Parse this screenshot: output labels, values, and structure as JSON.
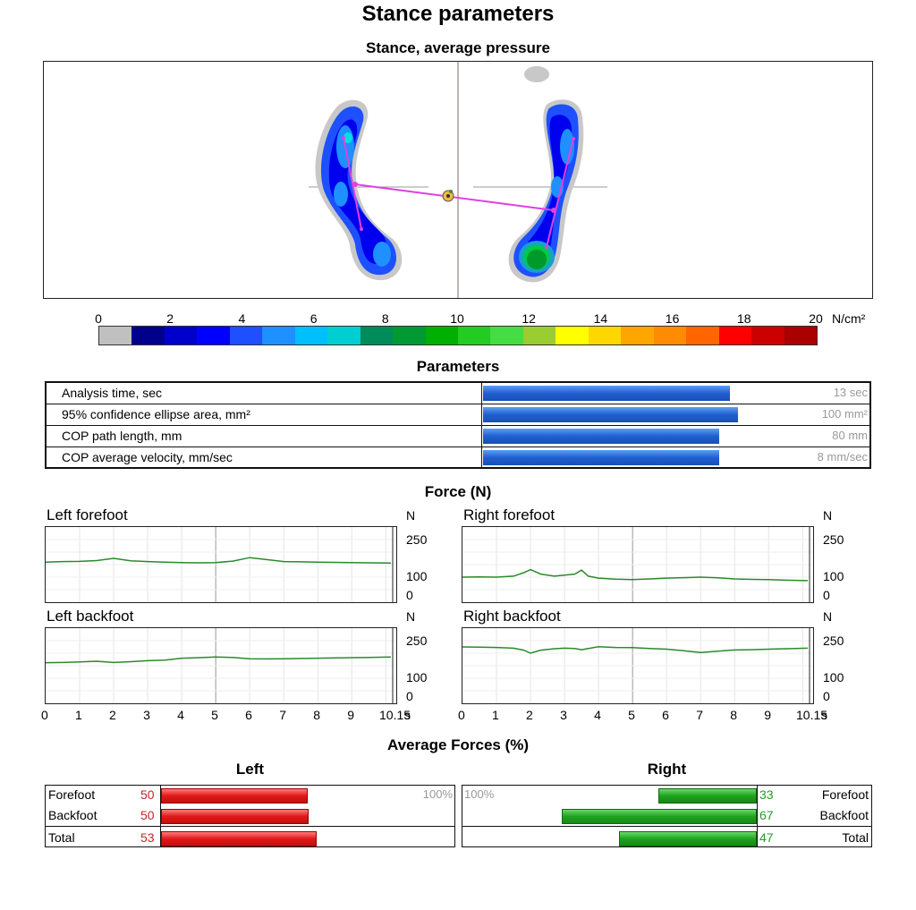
{
  "page_title": "Stance parameters",
  "pressure_map": {
    "title": "Stance, average pressure",
    "scale_labels": [
      "0",
      "2",
      "4",
      "6",
      "8",
      "10",
      "12",
      "14",
      "16",
      "18",
      "20"
    ],
    "scale_unit": "N/cm²",
    "colorbar_colors": [
      "#c0c0c0",
      "#00008b",
      "#0000cd",
      "#0000ff",
      "#1e50ff",
      "#1e90ff",
      "#00bfff",
      "#00ced1",
      "#008b5a",
      "#009933",
      "#00b000",
      "#22cc22",
      "#44dd44",
      "#9acd32",
      "#ffff00",
      "#ffd700",
      "#ffa500",
      "#ff8c00",
      "#ff6600",
      "#ff0000",
      "#cc0000",
      "#aa0000"
    ]
  },
  "parameters": {
    "title": "Parameters",
    "rows": [
      {
        "label": "Analysis time, sec",
        "value": "10,2",
        "fraction": 0.785,
        "max": "13 sec"
      },
      {
        "label": "95% confidence ellipse area, mm²",
        "value": "81",
        "fraction": 0.81,
        "max": "100 mm²"
      },
      {
        "label": "COP path length, mm",
        "value": "60",
        "fraction": 0.75,
        "max": "80 mm"
      },
      {
        "label": "COP average velocity, mm/sec",
        "value": "6",
        "fraction": 0.75,
        "max": "8 mm/sec"
      }
    ]
  },
  "force": {
    "title": "Force (N)",
    "unit": "N",
    "y_ticks": [
      "250",
      "100",
      "0"
    ],
    "x_ticks": [
      "0",
      "1",
      "2",
      "3",
      "4",
      "5",
      "6",
      "7",
      "8",
      "9",
      "10.15"
    ],
    "x_unit": "s",
    "panels": [
      {
        "title": "Left forefoot"
      },
      {
        "title": "Right forefoot"
      },
      {
        "title": "Left backfoot"
      },
      {
        "title": "Right backfoot"
      }
    ]
  },
  "average_forces": {
    "title": "Average Forces (%)",
    "left": {
      "title": "Left",
      "rows": [
        {
          "label": "Forefoot",
          "value": "50"
        },
        {
          "label": "Backfoot",
          "value": "50"
        },
        {
          "label": "Total",
          "value": "53"
        }
      ],
      "max_label": "100%"
    },
    "right": {
      "title": "Right",
      "rows": [
        {
          "label": "Forefoot",
          "value": "33"
        },
        {
          "label": "Backfoot",
          "value": "67"
        },
        {
          "label": "Total",
          "value": "47"
        }
      ],
      "max_label": "100%"
    }
  },
  "chart_data": [
    {
      "type": "line",
      "title": "Left forefoot",
      "x": [
        0,
        0.5,
        1,
        1.5,
        2,
        2.5,
        3,
        3.5,
        4,
        4.5,
        5,
        5.5,
        6,
        6.5,
        7,
        7.5,
        8,
        8.5,
        9,
        9.5,
        10.15
      ],
      "y": [
        160,
        162,
        163,
        166,
        175,
        165,
        162,
        160,
        158,
        157,
        158,
        164,
        178,
        170,
        162,
        161,
        160,
        159,
        158,
        157,
        156
      ],
      "ylim": [
        0,
        300
      ],
      "xlim": [
        0,
        10.15
      ],
      "ylabel": "N",
      "xlabel": "s"
    },
    {
      "type": "line",
      "title": "Right forefoot",
      "x": [
        0,
        0.5,
        1,
        1.5,
        1.8,
        2,
        2.3,
        2.7,
        3,
        3.3,
        3.5,
        3.7,
        4,
        4.5,
        5,
        5.5,
        6,
        6.5,
        7,
        7.5,
        8,
        8.5,
        9,
        9.5,
        10.15
      ],
      "y": [
        100,
        101,
        100,
        104,
        118,
        130,
        112,
        104,
        108,
        112,
        128,
        104,
        96,
        92,
        90,
        93,
        96,
        98,
        100,
        97,
        93,
        91,
        90,
        88,
        86
      ],
      "ylim": [
        0,
        300
      ],
      "xlim": [
        0,
        10.15
      ],
      "ylabel": "N",
      "xlabel": "s"
    },
    {
      "type": "line",
      "title": "Left backfoot",
      "x": [
        0,
        0.5,
        1,
        1.5,
        2,
        2.5,
        3,
        3.5,
        4,
        4.5,
        5,
        5.5,
        6,
        6.5,
        7,
        7.5,
        8,
        8.5,
        9,
        9.5,
        10.15
      ],
      "y": [
        162,
        163,
        165,
        168,
        163,
        166,
        170,
        172,
        180,
        182,
        185,
        183,
        178,
        177,
        178,
        179,
        180,
        181,
        182,
        183,
        185
      ],
      "ylim": [
        0,
        300
      ],
      "xlim": [
        0,
        10.15
      ],
      "ylabel": "N",
      "xlabel": "s"
    },
    {
      "type": "line",
      "title": "Right backfoot",
      "x": [
        0,
        0.5,
        1,
        1.5,
        1.8,
        2,
        2.3,
        2.7,
        3,
        3.3,
        3.5,
        4,
        4.5,
        5,
        5.5,
        6,
        6.5,
        7,
        7.5,
        8,
        8.5,
        9,
        9.5,
        10.15
      ],
      "y": [
        225,
        224,
        223,
        220,
        212,
        200,
        212,
        218,
        220,
        219,
        214,
        226,
        223,
        222,
        219,
        216,
        210,
        203,
        208,
        213,
        214,
        216,
        218,
        220
      ],
      "ylim": [
        0,
        300
      ],
      "xlim": [
        0,
        10.15
      ],
      "ylabel": "N",
      "xlabel": "s"
    }
  ]
}
